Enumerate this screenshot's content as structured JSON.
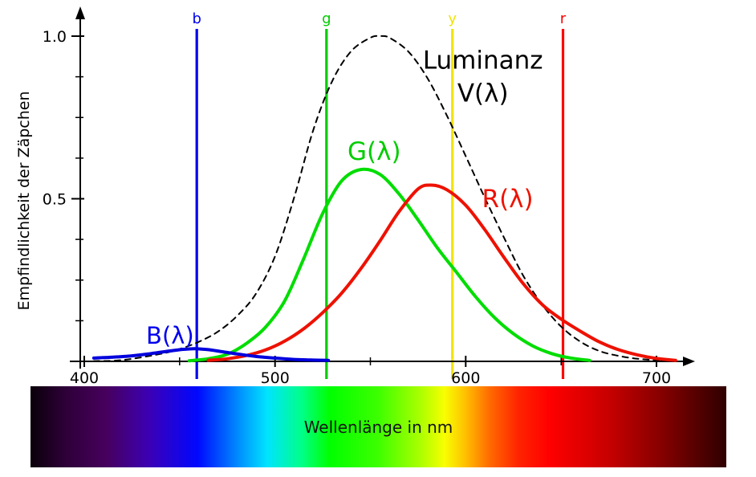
{
  "chart_data": {
    "type": "line",
    "title": "",
    "xlabel": "Wellenlänge in nm",
    "ylabel": "Empfindlichkeit der Zäpchen",
    "xlim": [
      395,
      715
    ],
    "ylim": [
      0,
      1.05
    ],
    "grid": false,
    "x_major_ticks": [
      400,
      500,
      600,
      700
    ],
    "x_minor_ticks": [
      450,
      550,
      650
    ],
    "y_major_ticks": [
      {
        "value": 0.5,
        "label": "0.5"
      },
      {
        "value": 1.0,
        "label": "1.0"
      }
    ],
    "y_minor_ticks": [
      0.125,
      0.25,
      0.375,
      0.625,
      0.75,
      0.875
    ],
    "markers": [
      {
        "id": "b",
        "label": "b",
        "wavelength": 459,
        "color": "#0000ee"
      },
      {
        "id": "g",
        "label": "g",
        "wavelength": 527,
        "color": "#00cc00"
      },
      {
        "id": "y",
        "label": "y",
        "wavelength": 593,
        "color": "#f2e300"
      },
      {
        "id": "r",
        "label": "r",
        "wavelength": 651,
        "color": "#ff0000"
      }
    ],
    "series": [
      {
        "id": "v-lambda",
        "name": "Luminanz V(λ)",
        "color": "#000000",
        "width": 2,
        "dash": "7 6",
        "points": [
          [
            405,
            0.001
          ],
          [
            420,
            0.004
          ],
          [
            440,
            0.023
          ],
          [
            450,
            0.038
          ],
          [
            460,
            0.06
          ],
          [
            470,
            0.091
          ],
          [
            480,
            0.139
          ],
          [
            490,
            0.208
          ],
          [
            500,
            0.323
          ],
          [
            510,
            0.503
          ],
          [
            520,
            0.71
          ],
          [
            530,
            0.862
          ],
          [
            540,
            0.954
          ],
          [
            550,
            0.995
          ],
          [
            555,
            1.0
          ],
          [
            560,
            0.995
          ],
          [
            570,
            0.952
          ],
          [
            580,
            0.87
          ],
          [
            590,
            0.757
          ],
          [
            600,
            0.631
          ],
          [
            610,
            0.503
          ],
          [
            620,
            0.381
          ],
          [
            630,
            0.265
          ],
          [
            640,
            0.175
          ],
          [
            650,
            0.107
          ],
          [
            660,
            0.061
          ],
          [
            670,
            0.032
          ],
          [
            680,
            0.017
          ],
          [
            690,
            0.008
          ],
          [
            700,
            0.004
          ],
          [
            710,
            0.002
          ]
        ]
      },
      {
        "id": "g-lambda",
        "name": "G(λ)",
        "color": "#00dd00",
        "width": 4,
        "dash": "",
        "points": [
          [
            455,
            0.002
          ],
          [
            465,
            0.008
          ],
          [
            475,
            0.022
          ],
          [
            485,
            0.055
          ],
          [
            495,
            0.105
          ],
          [
            505,
            0.185
          ],
          [
            515,
            0.315
          ],
          [
            525,
            0.455
          ],
          [
            535,
            0.555
          ],
          [
            545,
            0.59
          ],
          [
            555,
            0.575
          ],
          [
            565,
            0.515
          ],
          [
            575,
            0.435
          ],
          [
            585,
            0.35
          ],
          [
            595,
            0.275
          ],
          [
            605,
            0.2
          ],
          [
            615,
            0.135
          ],
          [
            625,
            0.085
          ],
          [
            635,
            0.048
          ],
          [
            645,
            0.024
          ],
          [
            655,
            0.01
          ],
          [
            665,
            0.003
          ]
        ]
      },
      {
        "id": "r-lambda",
        "name": "R(λ)",
        "color": "#ee1100",
        "width": 4,
        "dash": "",
        "points": [
          [
            465,
            0.003
          ],
          [
            475,
            0.008
          ],
          [
            485,
            0.018
          ],
          [
            495,
            0.035
          ],
          [
            505,
            0.062
          ],
          [
            515,
            0.1
          ],
          [
            525,
            0.15
          ],
          [
            535,
            0.21
          ],
          [
            545,
            0.285
          ],
          [
            555,
            0.37
          ],
          [
            565,
            0.46
          ],
          [
            575,
            0.53
          ],
          [
            582,
            0.542
          ],
          [
            590,
            0.528
          ],
          [
            600,
            0.48
          ],
          [
            610,
            0.405
          ],
          [
            620,
            0.32
          ],
          [
            630,
            0.24
          ],
          [
            640,
            0.175
          ],
          [
            650,
            0.13
          ],
          [
            660,
            0.093
          ],
          [
            670,
            0.06
          ],
          [
            680,
            0.036
          ],
          [
            690,
            0.02
          ],
          [
            700,
            0.009
          ],
          [
            710,
            0.003
          ]
        ]
      },
      {
        "id": "b-lambda",
        "name": "B(λ)",
        "color": "#0000dd",
        "width": 4,
        "dash": "",
        "points": [
          [
            405,
            0.01
          ],
          [
            415,
            0.013
          ],
          [
            425,
            0.017
          ],
          [
            435,
            0.024
          ],
          [
            445,
            0.032
          ],
          [
            452,
            0.037
          ],
          [
            458,
            0.039
          ],
          [
            465,
            0.036
          ],
          [
            472,
            0.03
          ],
          [
            480,
            0.023
          ],
          [
            490,
            0.015
          ],
          [
            500,
            0.01
          ],
          [
            510,
            0.006
          ],
          [
            520,
            0.004
          ],
          [
            528,
            0.003
          ]
        ]
      }
    ],
    "annotations": [
      {
        "id": "luminanz",
        "lines": [
          "Luminanz",
          "V(λ)"
        ],
        "color": "#000000",
        "x": 609,
        "y": 0.9,
        "size": 31,
        "line_gap": 41
      },
      {
        "id": "g",
        "lines": [
          "G(λ)"
        ],
        "color": "#00cc00",
        "x": 552,
        "y": 0.62,
        "size": 31
      },
      {
        "id": "r",
        "lines": [
          "R(λ)"
        ],
        "color": "#ee1100",
        "x": 622,
        "y": 0.474,
        "size": 31
      },
      {
        "id": "b",
        "lines": [
          "B(λ)"
        ],
        "color": "#0000ee",
        "x": 445,
        "y": 0.054,
        "size": 29
      }
    ],
    "spectrum_bar": {
      "label": "Wellenlänge in nm",
      "gradient": [
        {
          "pos": 0.0,
          "color": "#0a000a"
        },
        {
          "pos": 0.05,
          "color": "#2e0038"
        },
        {
          "pos": 0.11,
          "color": "#47005e"
        },
        {
          "pos": 0.17,
          "color": "#3c00b4"
        },
        {
          "pos": 0.24,
          "color": "#0008ff"
        },
        {
          "pos": 0.3,
          "color": "#0090ff"
        },
        {
          "pos": 0.34,
          "color": "#00e4ff"
        },
        {
          "pos": 0.39,
          "color": "#00ff88"
        },
        {
          "pos": 0.43,
          "color": "#00ff00"
        },
        {
          "pos": 0.5,
          "color": "#3dff00"
        },
        {
          "pos": 0.56,
          "color": "#aaff00"
        },
        {
          "pos": 0.595,
          "color": "#f8ff00"
        },
        {
          "pos": 0.625,
          "color": "#ffc000"
        },
        {
          "pos": 0.66,
          "color": "#ff6a00"
        },
        {
          "pos": 0.7,
          "color": "#ff2500"
        },
        {
          "pos": 0.745,
          "color": "#ff0000"
        },
        {
          "pos": 0.83,
          "color": "#c80000"
        },
        {
          "pos": 0.91,
          "color": "#820000"
        },
        {
          "pos": 1.0,
          "color": "#2e0000"
        }
      ]
    }
  }
}
